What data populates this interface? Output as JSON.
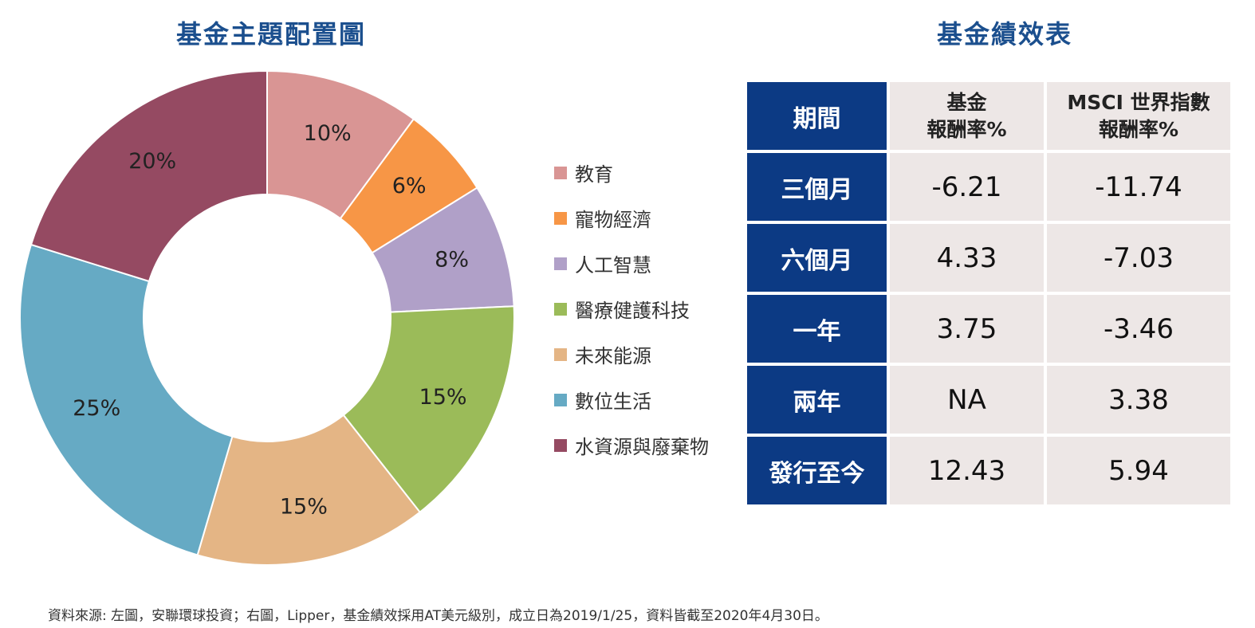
{
  "chart_data": {
    "type": "pie",
    "title": "基金主題配置圖",
    "categories": [
      "教育",
      "寵物經濟",
      "人工智慧",
      "醫療健護科技",
      "未來能源",
      "數位生活",
      "水資源與廢棄物"
    ],
    "values": [
      10,
      6,
      8,
      15,
      15,
      25,
      20
    ],
    "value_labels": [
      "10%",
      "6%",
      "8%",
      "15%",
      "15%",
      "25%",
      "20%"
    ],
    "colors": [
      "#d99594",
      "#f79646",
      "#b0a0c8",
      "#9bbb59",
      "#e4b585",
      "#66aac4",
      "#954a62"
    ],
    "donut": true,
    "legend_position": "right"
  },
  "table": {
    "title": "基金績效表",
    "header": {
      "period": "期間",
      "fund_line1": "基金",
      "fund_line2": "報酬率%",
      "msci_line1": "MSCI 世界指數",
      "msci_line2": "報酬率%"
    },
    "rows": [
      {
        "period": "三個月",
        "fund": "-6.21",
        "msci": "-11.74"
      },
      {
        "period": "六個月",
        "fund": "4.33",
        "msci": "-7.03"
      },
      {
        "period": "一年",
        "fund": "3.75",
        "msci": "-3.46"
      },
      {
        "period": "兩年",
        "fund": "NA",
        "msci": "3.38"
      },
      {
        "period": "發行至今",
        "fund": "12.43",
        "msci": "5.94"
      }
    ]
  },
  "footnote": "資料來源: 左圖，安聯環球投資；右圖，Lipper，基金績效採用AT美元級別，成立日為2019/1/25，資料皆截至2020年4月30日。",
  "theme": {
    "title_color": "#1b4f8e",
    "header_blue": "#0c3a84",
    "cell_bg": "#ede7e6"
  }
}
